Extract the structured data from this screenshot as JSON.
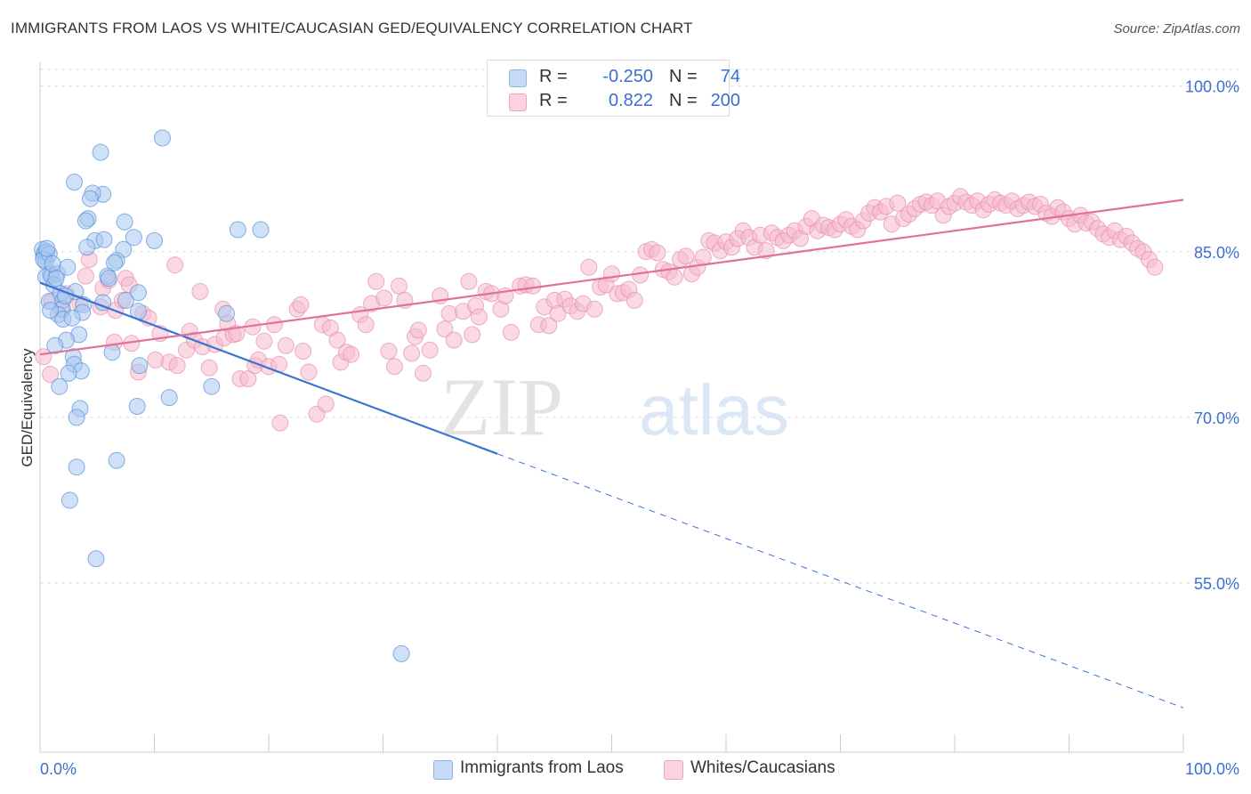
{
  "header": {
    "title": "IMMIGRANTS FROM LAOS VS WHITE/CAUCASIAN GED/EQUIVALENCY CORRELATION CHART",
    "source": "Source: ZipAtlas.com"
  },
  "watermark": {
    "zip": "ZIP",
    "atlas": "atlas"
  },
  "stats_legend": {
    "rows": [
      {
        "r_label": "R =",
        "r_value": "-0.250",
        "n_label": "N =",
        "n_value": "74",
        "color": "#a8c8f0"
      },
      {
        "r_label": "R =",
        "r_value": "0.822",
        "n_label": "N =",
        "n_value": "200",
        "color": "#f6b9cc"
      }
    ]
  },
  "bottom_legend": {
    "items": [
      {
        "label": "Immigrants from Laos",
        "color": "#a8c8f0"
      },
      {
        "label": "Whites/Caucasians",
        "color": "#f6b9cc"
      }
    ]
  },
  "chart_data": {
    "type": "scatter",
    "title": "IMMIGRANTS FROM LAOS VS WHITE/CAUCASIAN GED/EQUIVALENCY CORRELATION CHART",
    "xlabel": "",
    "ylabel": "GED/Equivalency",
    "xlim": [
      0,
      100
    ],
    "ylim": [
      40,
      103
    ],
    "x_tick_labels": [
      "0.0%",
      "100.0%"
    ],
    "y_ticks": [
      55,
      70,
      85,
      100
    ],
    "y_tick_labels": [
      "55.0%",
      "70.0%",
      "85.0%",
      "100.0%"
    ],
    "grid": true,
    "legend": "bottom",
    "series": [
      {
        "name": "Immigrants from Laos",
        "color": "#a8c8f0",
        "stroke": "#5b8fd8",
        "trend": {
          "x0": 0,
          "y0": 82.2,
          "x1": 40,
          "y1": 66.7,
          "dash_to_x": 100,
          "dash_to_y": 43.7,
          "color": "#3a73d6"
        },
        "points": [
          [
            0.2,
            85.2
          ],
          [
            0.3,
            84.6
          ],
          [
            0.4,
            84.9
          ],
          [
            0.5,
            84.1
          ],
          [
            0.6,
            85.0
          ],
          [
            0.8,
            84.8
          ],
          [
            0.9,
            83.0
          ],
          [
            0.5,
            82.7
          ],
          [
            1.0,
            82.8
          ],
          [
            1.5,
            83.0
          ],
          [
            1.2,
            82.0
          ],
          [
            0.8,
            80.5
          ],
          [
            1.8,
            81.2
          ],
          [
            2.0,
            80.6
          ],
          [
            2.4,
            83.6
          ],
          [
            1.9,
            79.8
          ],
          [
            1.6,
            79.3
          ],
          [
            3.1,
            81.4
          ],
          [
            3.8,
            80.2
          ],
          [
            3.7,
            79.5
          ],
          [
            2.0,
            78.9
          ],
          [
            2.8,
            79.0
          ],
          [
            3.4,
            77.5
          ],
          [
            2.3,
            77.0
          ],
          [
            1.3,
            76.5
          ],
          [
            2.9,
            75.5
          ],
          [
            3.0,
            74.8
          ],
          [
            3.6,
            74.2
          ],
          [
            2.5,
            74.0
          ],
          [
            1.7,
            72.8
          ],
          [
            3.5,
            70.8
          ],
          [
            3.2,
            70.0
          ],
          [
            3.2,
            65.5
          ],
          [
            2.6,
            62.5
          ],
          [
            4.9,
            57.2
          ],
          [
            3.0,
            91.3
          ],
          [
            5.3,
            94.0
          ],
          [
            5.5,
            90.2
          ],
          [
            4.6,
            90.3
          ],
          [
            4.4,
            89.8
          ],
          [
            4.2,
            88.0
          ],
          [
            4.0,
            87.8
          ],
          [
            4.8,
            86.0
          ],
          [
            5.6,
            86.1
          ],
          [
            7.4,
            87.7
          ],
          [
            8.2,
            86.3
          ],
          [
            10.0,
            86.0
          ],
          [
            7.3,
            85.2
          ],
          [
            4.1,
            85.4
          ],
          [
            6.7,
            84.2
          ],
          [
            6.5,
            84.0
          ],
          [
            5.9,
            82.8
          ],
          [
            6.0,
            82.6
          ],
          [
            7.5,
            80.6
          ],
          [
            5.5,
            80.4
          ],
          [
            8.6,
            81.3
          ],
          [
            8.6,
            79.6
          ],
          [
            6.3,
            75.9
          ],
          [
            8.7,
            74.7
          ],
          [
            11.3,
            71.8
          ],
          [
            8.5,
            71.0
          ],
          [
            6.7,
            66.1
          ],
          [
            10.7,
            95.3
          ],
          [
            17.3,
            87.0
          ],
          [
            19.3,
            87.0
          ],
          [
            16.3,
            79.4
          ],
          [
            15.0,
            72.8
          ],
          [
            31.6,
            48.6
          ],
          [
            0.3,
            84.3
          ],
          [
            0.6,
            85.3
          ],
          [
            1.1,
            83.9
          ],
          [
            1.4,
            82.6
          ],
          [
            2.2,
            81.0
          ],
          [
            0.9,
            79.7
          ]
        ]
      },
      {
        "name": "Whites/Caucasians",
        "color": "#f6b9cc",
        "stroke": "#e58fae",
        "trend": {
          "x0": 0,
          "y0": 75.7,
          "x1": 100,
          "y1": 89.7,
          "color": "#e2719a"
        },
        "points": [
          [
            0.3,
            75.5
          ],
          [
            0.9,
            73.9
          ],
          [
            1.0,
            80.5
          ],
          [
            2.0,
            79.8
          ],
          [
            2.3,
            81.2
          ],
          [
            3.5,
            80.3
          ],
          [
            4.0,
            82.8
          ],
          [
            4.3,
            84.3
          ],
          [
            5.3,
            80.0
          ],
          [
            5.5,
            81.7
          ],
          [
            6.0,
            82.4
          ],
          [
            6.5,
            76.8
          ],
          [
            6.6,
            79.7
          ],
          [
            7.2,
            80.6
          ],
          [
            7.5,
            82.6
          ],
          [
            7.8,
            82.0
          ],
          [
            8.0,
            76.7
          ],
          [
            8.6,
            74.1
          ],
          [
            9.0,
            79.4
          ],
          [
            9.5,
            79.0
          ],
          [
            10.1,
            75.2
          ],
          [
            10.5,
            77.6
          ],
          [
            11.3,
            75.0
          ],
          [
            11.8,
            83.8
          ],
          [
            12.0,
            74.7
          ],
          [
            12.8,
            76.1
          ],
          [
            13.1,
            77.8
          ],
          [
            13.5,
            77.0
          ],
          [
            14.0,
            81.4
          ],
          [
            14.2,
            76.4
          ],
          [
            14.8,
            74.5
          ],
          [
            15.3,
            76.6
          ],
          [
            16.0,
            79.8
          ],
          [
            16.1,
            77.2
          ],
          [
            16.4,
            78.5
          ],
          [
            16.9,
            77.5
          ],
          [
            17.2,
            77.6
          ],
          [
            17.5,
            73.5
          ],
          [
            18.2,
            73.5
          ],
          [
            18.6,
            78.2
          ],
          [
            18.8,
            74.7
          ],
          [
            19.1,
            75.2
          ],
          [
            19.6,
            76.9
          ],
          [
            20.0,
            74.6
          ],
          [
            20.5,
            78.4
          ],
          [
            21.0,
            69.5
          ],
          [
            21.5,
            76.5
          ],
          [
            22.5,
            79.8
          ],
          [
            22.8,
            80.2
          ],
          [
            23.0,
            76.0
          ],
          [
            23.5,
            74.1
          ],
          [
            24.2,
            70.3
          ],
          [
            24.7,
            78.4
          ],
          [
            25.0,
            71.2
          ],
          [
            25.4,
            78.1
          ],
          [
            26.0,
            77.0
          ],
          [
            26.3,
            75.0
          ],
          [
            26.8,
            75.9
          ],
          [
            27.2,
            75.7
          ],
          [
            28.0,
            79.3
          ],
          [
            28.5,
            78.4
          ],
          [
            29.0,
            80.3
          ],
          [
            29.4,
            82.3
          ],
          [
            30.1,
            80.8
          ],
          [
            30.5,
            76.0
          ],
          [
            31.0,
            74.6
          ],
          [
            31.4,
            81.9
          ],
          [
            31.9,
            80.6
          ],
          [
            32.5,
            75.8
          ],
          [
            32.8,
            77.3
          ],
          [
            33.1,
            77.9
          ],
          [
            33.5,
            74.0
          ],
          [
            34.1,
            76.1
          ],
          [
            35.0,
            81.0
          ],
          [
            35.4,
            78.0
          ],
          [
            35.8,
            79.4
          ],
          [
            36.2,
            77.0
          ],
          [
            37.0,
            79.6
          ],
          [
            37.5,
            82.3
          ],
          [
            38.1,
            80.1
          ],
          [
            38.4,
            79.1
          ],
          [
            39.0,
            81.4
          ],
          [
            39.5,
            81.2
          ],
          [
            40.3,
            79.8
          ],
          [
            40.7,
            81.0
          ],
          [
            41.2,
            77.7
          ],
          [
            42.0,
            81.9
          ],
          [
            42.5,
            82.0
          ],
          [
            43.1,
            81.9
          ],
          [
            43.6,
            78.4
          ],
          [
            44.1,
            80.0
          ],
          [
            44.5,
            78.3
          ],
          [
            45.0,
            80.6
          ],
          [
            45.3,
            79.4
          ],
          [
            45.9,
            80.7
          ],
          [
            46.4,
            80.1
          ],
          [
            47.0,
            79.6
          ],
          [
            47.5,
            80.3
          ],
          [
            48.0,
            83.6
          ],
          [
            48.5,
            79.8
          ],
          [
            49.0,
            81.8
          ],
          [
            49.5,
            82.0
          ],
          [
            50.0,
            83.0
          ],
          [
            50.5,
            81.2
          ],
          [
            51.0,
            81.3
          ],
          [
            51.5,
            81.6
          ],
          [
            52.0,
            80.6
          ],
          [
            52.5,
            82.9
          ],
          [
            53.0,
            85.0
          ],
          [
            53.5,
            85.2
          ],
          [
            54.0,
            84.9
          ],
          [
            54.5,
            83.4
          ],
          [
            55.0,
            83.2
          ],
          [
            55.5,
            82.7
          ],
          [
            56.0,
            84.3
          ],
          [
            56.5,
            84.6
          ],
          [
            57.0,
            83.0
          ],
          [
            57.5,
            83.6
          ],
          [
            58.0,
            84.5
          ],
          [
            58.5,
            86.0
          ],
          [
            59.0,
            85.8
          ],
          [
            59.5,
            85.1
          ],
          [
            60.0,
            85.9
          ],
          [
            60.5,
            85.4
          ],
          [
            61.0,
            86.2
          ],
          [
            61.5,
            86.9
          ],
          [
            62.0,
            86.3
          ],
          [
            62.5,
            85.4
          ],
          [
            63.0,
            86.5
          ],
          [
            63.5,
            85.1
          ],
          [
            64.0,
            86.7
          ],
          [
            64.5,
            86.3
          ],
          [
            65.0,
            86.0
          ],
          [
            65.5,
            86.5
          ],
          [
            66.0,
            86.9
          ],
          [
            66.5,
            86.2
          ],
          [
            67.0,
            87.3
          ],
          [
            67.5,
            88.0
          ],
          [
            68.0,
            86.9
          ],
          [
            68.5,
            87.4
          ],
          [
            69.0,
            87.2
          ],
          [
            69.5,
            87.0
          ],
          [
            70.0,
            87.5
          ],
          [
            70.5,
            87.9
          ],
          [
            71.0,
            87.3
          ],
          [
            71.5,
            87.0
          ],
          [
            72.0,
            87.8
          ],
          [
            72.5,
            88.5
          ],
          [
            73.0,
            89.0
          ],
          [
            73.5,
            88.6
          ],
          [
            74.0,
            89.1
          ],
          [
            74.5,
            87.5
          ],
          [
            75.0,
            89.4
          ],
          [
            75.5,
            88.0
          ],
          [
            76.0,
            88.4
          ],
          [
            76.5,
            88.9
          ],
          [
            77.0,
            89.3
          ],
          [
            77.5,
            89.5
          ],
          [
            78.0,
            89.2
          ],
          [
            78.5,
            89.6
          ],
          [
            79.0,
            88.3
          ],
          [
            79.5,
            89.1
          ],
          [
            80.0,
            89.4
          ],
          [
            80.5,
            90.0
          ],
          [
            81.0,
            89.5
          ],
          [
            81.5,
            89.2
          ],
          [
            82.0,
            89.6
          ],
          [
            82.5,
            88.8
          ],
          [
            83.0,
            89.3
          ],
          [
            83.5,
            89.7
          ],
          [
            84.0,
            89.4
          ],
          [
            84.5,
            89.2
          ],
          [
            85.0,
            89.6
          ],
          [
            85.5,
            88.9
          ],
          [
            86.0,
            89.2
          ],
          [
            86.5,
            89.5
          ],
          [
            87.0,
            89.1
          ],
          [
            87.5,
            89.3
          ],
          [
            88.0,
            88.5
          ],
          [
            88.5,
            88.2
          ],
          [
            89.0,
            89.0
          ],
          [
            89.5,
            88.6
          ],
          [
            90.0,
            88.0
          ],
          [
            90.5,
            87.5
          ],
          [
            91.0,
            88.3
          ],
          [
            91.5,
            87.6
          ],
          [
            92.0,
            87.7
          ],
          [
            92.5,
            87.1
          ],
          [
            93.0,
            86.6
          ],
          [
            93.5,
            86.3
          ],
          [
            94.0,
            86.9
          ],
          [
            94.5,
            86.1
          ],
          [
            95.0,
            86.4
          ],
          [
            95.5,
            85.8
          ],
          [
            96.0,
            85.3
          ],
          [
            96.5,
            85.0
          ],
          [
            97.0,
            84.3
          ],
          [
            97.5,
            83.6
          ],
          [
            37.8,
            77.5
          ],
          [
            20.9,
            74.8
          ]
        ]
      }
    ]
  }
}
